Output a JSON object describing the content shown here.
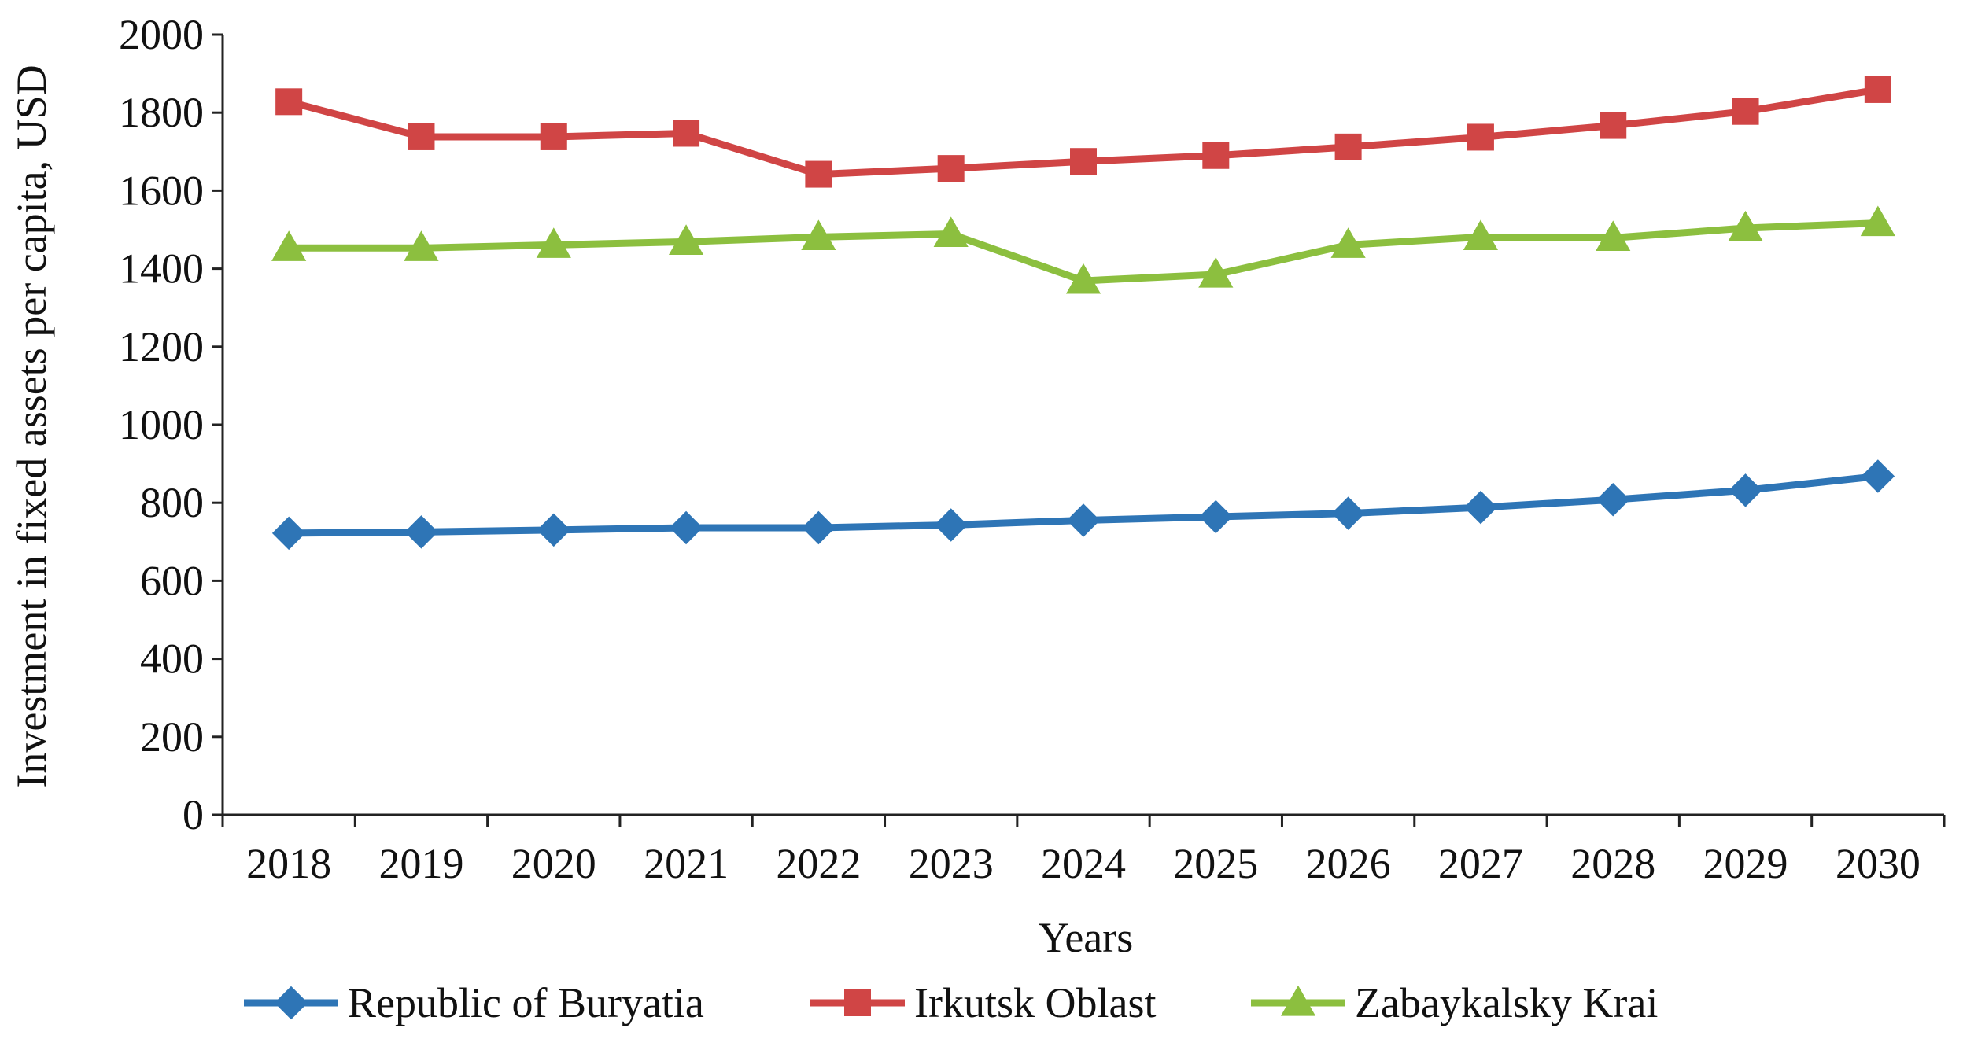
{
  "chart_data": {
    "type": "line",
    "title": "",
    "xlabel": "Years",
    "ylabel": "Investment in fixed assets per capita, USD",
    "ylim": [
      0,
      2000
    ],
    "yticks": [
      0,
      200,
      400,
      600,
      800,
      1000,
      1200,
      1400,
      1600,
      1800,
      2000
    ],
    "grid": false,
    "legend_position": "bottom",
    "categories": [
      "2018",
      "2019",
      "2020",
      "2021",
      "2022",
      "2023",
      "2024",
      "2025",
      "2026",
      "2027",
      "2028",
      "2029",
      "2030"
    ],
    "series": [
      {
        "name": "Republic of Buryatia",
        "color": "#2e75b6",
        "marker": "diamond",
        "values": [
          722,
          725,
          730,
          736,
          736,
          743,
          755,
          764,
          773,
          788,
          808,
          832,
          868
        ]
      },
      {
        "name": "Irkutsk Oblast",
        "color": "#d04545",
        "marker": "square",
        "values": [
          1828,
          1738,
          1738,
          1747,
          1642,
          1657,
          1675,
          1690,
          1712,
          1737,
          1767,
          1803,
          1859
        ]
      },
      {
        "name": "Zabaykalsky Krai",
        "color": "#8cbf3f",
        "marker": "triangle",
        "values": [
          1453,
          1453,
          1461,
          1469,
          1481,
          1489,
          1369,
          1385,
          1461,
          1481,
          1479,
          1504,
          1517
        ]
      }
    ]
  }
}
